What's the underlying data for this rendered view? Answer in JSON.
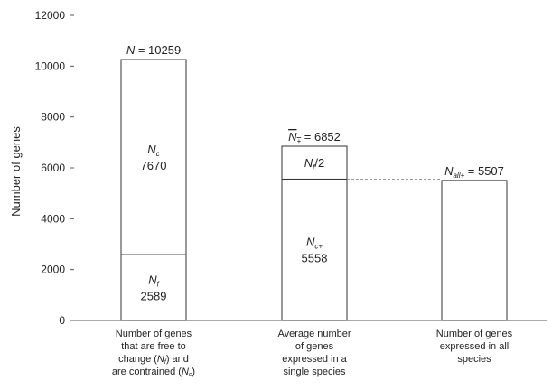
{
  "chart_data": {
    "type": "bar",
    "stacked": true,
    "ylabel": "Number of genes",
    "ylim": [
      0,
      12000
    ],
    "yticks": [
      0,
      2000,
      4000,
      6000,
      8000,
      10000,
      12000
    ],
    "grid": false,
    "categories": [
      [
        "Number of genes",
        "that are free to",
        "change (N",
        "are contrained (N"
      ],
      [
        "Average number",
        "of genes",
        "expressed in a",
        "single species"
      ],
      [
        "Number of genes",
        "expressed in all",
        "species"
      ]
    ],
    "bars": [
      {
        "total_label": {
          "var": "N",
          "sub": "",
          "text": " = 10259"
        },
        "total": 10259,
        "segments": [
          {
            "value": 2589,
            "var": "N",
            "sub": "f",
            "number": "2589"
          },
          {
            "value": 7670,
            "var": "N",
            "sub": "c",
            "number": "7670"
          }
        ]
      },
      {
        "total_label": {
          "var": "N",
          "sub": "+",
          "text": " = 6852",
          "overline": true
        },
        "total": 6852,
        "segments": [
          {
            "value": 5558,
            "var": "N",
            "sub": "c+",
            "number": "5558"
          },
          {
            "value": 1294,
            "var": "N",
            "sub": "f",
            "suffix": "/2",
            "number": ""
          }
        ]
      },
      {
        "total_label": {
          "var": "N",
          "sub": "all+",
          "text": " = 5507"
        },
        "total": 5507,
        "segments": [
          {
            "value": 5507,
            "var": "",
            "sub": "",
            "number": ""
          }
        ]
      }
    ],
    "reference_line": {
      "value": 5558,
      "style": "dashed"
    }
  }
}
